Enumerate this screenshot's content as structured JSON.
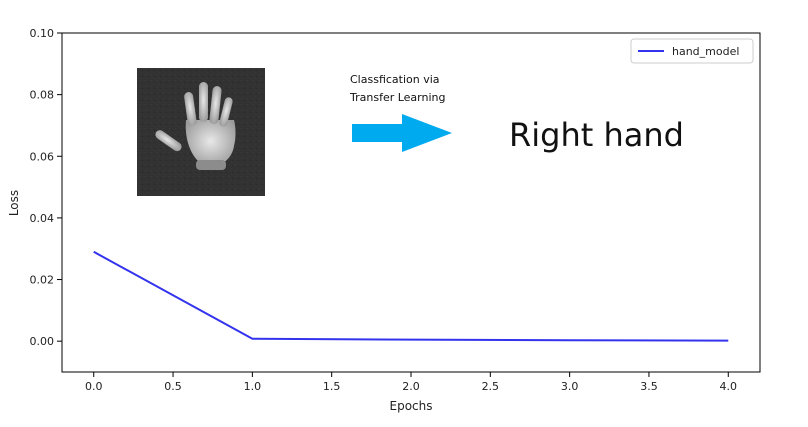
{
  "chart_data": {
    "type": "line",
    "xlabel": "Epochs",
    "ylabel": "Loss",
    "xlim": [
      -0.2,
      4.2
    ],
    "ylim": [
      -0.01,
      0.1
    ],
    "xticks": [
      "0.0",
      "0.5",
      "1.0",
      "1.5",
      "2.0",
      "2.5",
      "3.0",
      "3.5",
      "4.0"
    ],
    "yticks": [
      "0.00",
      "0.02",
      "0.04",
      "0.06",
      "0.08",
      "0.10"
    ],
    "grid": false,
    "legend": "top-right",
    "series": [
      {
        "name": "hand_model",
        "color": "#3333ee",
        "x": [
          0,
          1,
          2,
          3,
          4
        ],
        "y": [
          0.029,
          0.0008,
          0.0005,
          0.0003,
          0.0002
        ]
      }
    ],
    "annotations": {
      "caption_line1": "Classfication via",
      "caption_line2": "Transfer Learning",
      "result": "Right hand",
      "arrow_color": "#00aaee",
      "image": "hand-photo"
    }
  }
}
